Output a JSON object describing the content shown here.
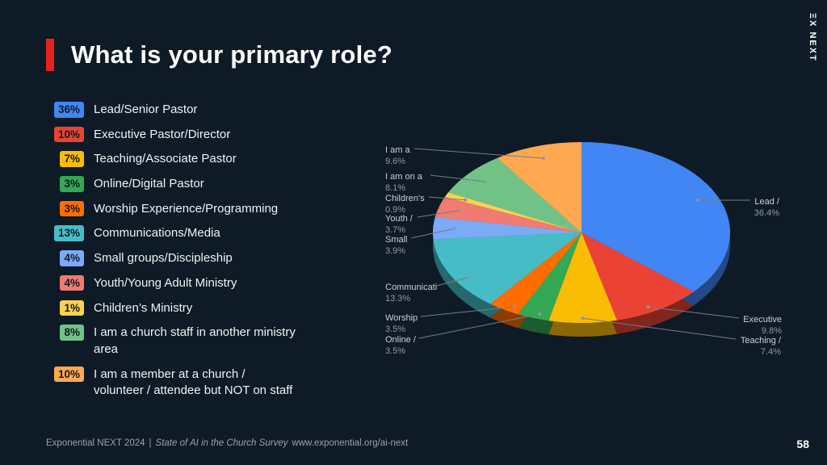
{
  "slide": {
    "title": "What is your primary role?",
    "logo_text": "ΞX NEXT",
    "page_number": "58",
    "footer": {
      "event": "Exponential NEXT 2024",
      "separator": "|",
      "survey": "State of AI in the Church Survey",
      "url": "www.exponential.org/ai-next"
    }
  },
  "colors": {
    "background": "#0e1b26",
    "accent_red": "#e5231b",
    "text": "#eef1f3",
    "muted": "#97a1aa",
    "pie_label_name": "#c9cfd4",
    "pie_label_pct": "#8d98a1"
  },
  "legend_items": [
    {
      "pct": "36%",
      "label": "Lead/Senior Pastor",
      "color": "#4285f4"
    },
    {
      "pct": "10%",
      "label": "Executive Pastor/Director",
      "color": "#ea4335"
    },
    {
      "pct": "7%",
      "label": "Teaching/Associate Pastor",
      "color": "#fbbc04"
    },
    {
      "pct": "3%",
      "label": "Online/Digital Pastor",
      "color": "#34a853"
    },
    {
      "pct": "3%",
      "label": "Worship Experience/Programming",
      "color": "#ff6d01"
    },
    {
      "pct": "13%",
      "label": "Communications/Media",
      "color": "#46bdc6"
    },
    {
      "pct": "4%",
      "label": "Small groups/Discipleship",
      "color": "#7baaf7"
    },
    {
      "pct": "4%",
      "label": "Youth/Young Adult Ministry",
      "color": "#f07b72"
    },
    {
      "pct": "1%",
      "label": "Children’s Ministry",
      "color": "#fcd04f"
    },
    {
      "pct": "8%",
      "label": "I am a church staff in another ministry area",
      "color": "#71c287"
    },
    {
      "pct": "10%",
      "label": "I am a member at a church / volunteer / attendee but NOT on staff",
      "color": "#ffa852"
    }
  ],
  "chart_data": {
    "type": "pie",
    "style": "3d",
    "title": "",
    "legend_position": "outside-labels",
    "start_angle_deg": 0,
    "slices": [
      {
        "label": "Lead /",
        "pct_label": "36.4%",
        "value": 36.4,
        "color": "#4285f4"
      },
      {
        "label": "Executive",
        "pct_label": "9.8%",
        "value": 9.8,
        "color": "#ea4335"
      },
      {
        "label": "Teaching /",
        "pct_label": "7.4%",
        "value": 7.4,
        "color": "#fbbc04"
      },
      {
        "label": "Online /",
        "pct_label": "3.5%",
        "value": 3.5,
        "color": "#34a853"
      },
      {
        "label": "Worship",
        "pct_label": "3.5%",
        "value": 3.5,
        "color": "#ff6d01"
      },
      {
        "label": "Communicati",
        "pct_label": "13.3%",
        "value": 13.3,
        "color": "#46bdc6"
      },
      {
        "label": "Small",
        "pct_label": "3.9%",
        "value": 3.9,
        "color": "#7baaf7"
      },
      {
        "label": "Youth /",
        "pct_label": "3.7%",
        "value": 3.7,
        "color": "#f07b72"
      },
      {
        "label": "Children's",
        "pct_label": "0.9%",
        "value": 0.9,
        "color": "#fcd04f"
      },
      {
        "label": "I am on a",
        "pct_label": "8.1%",
        "value": 8.1,
        "color": "#71c287"
      },
      {
        "label": "I am a",
        "pct_label": "9.6%",
        "value": 9.6,
        "color": "#ffa852"
      }
    ]
  }
}
